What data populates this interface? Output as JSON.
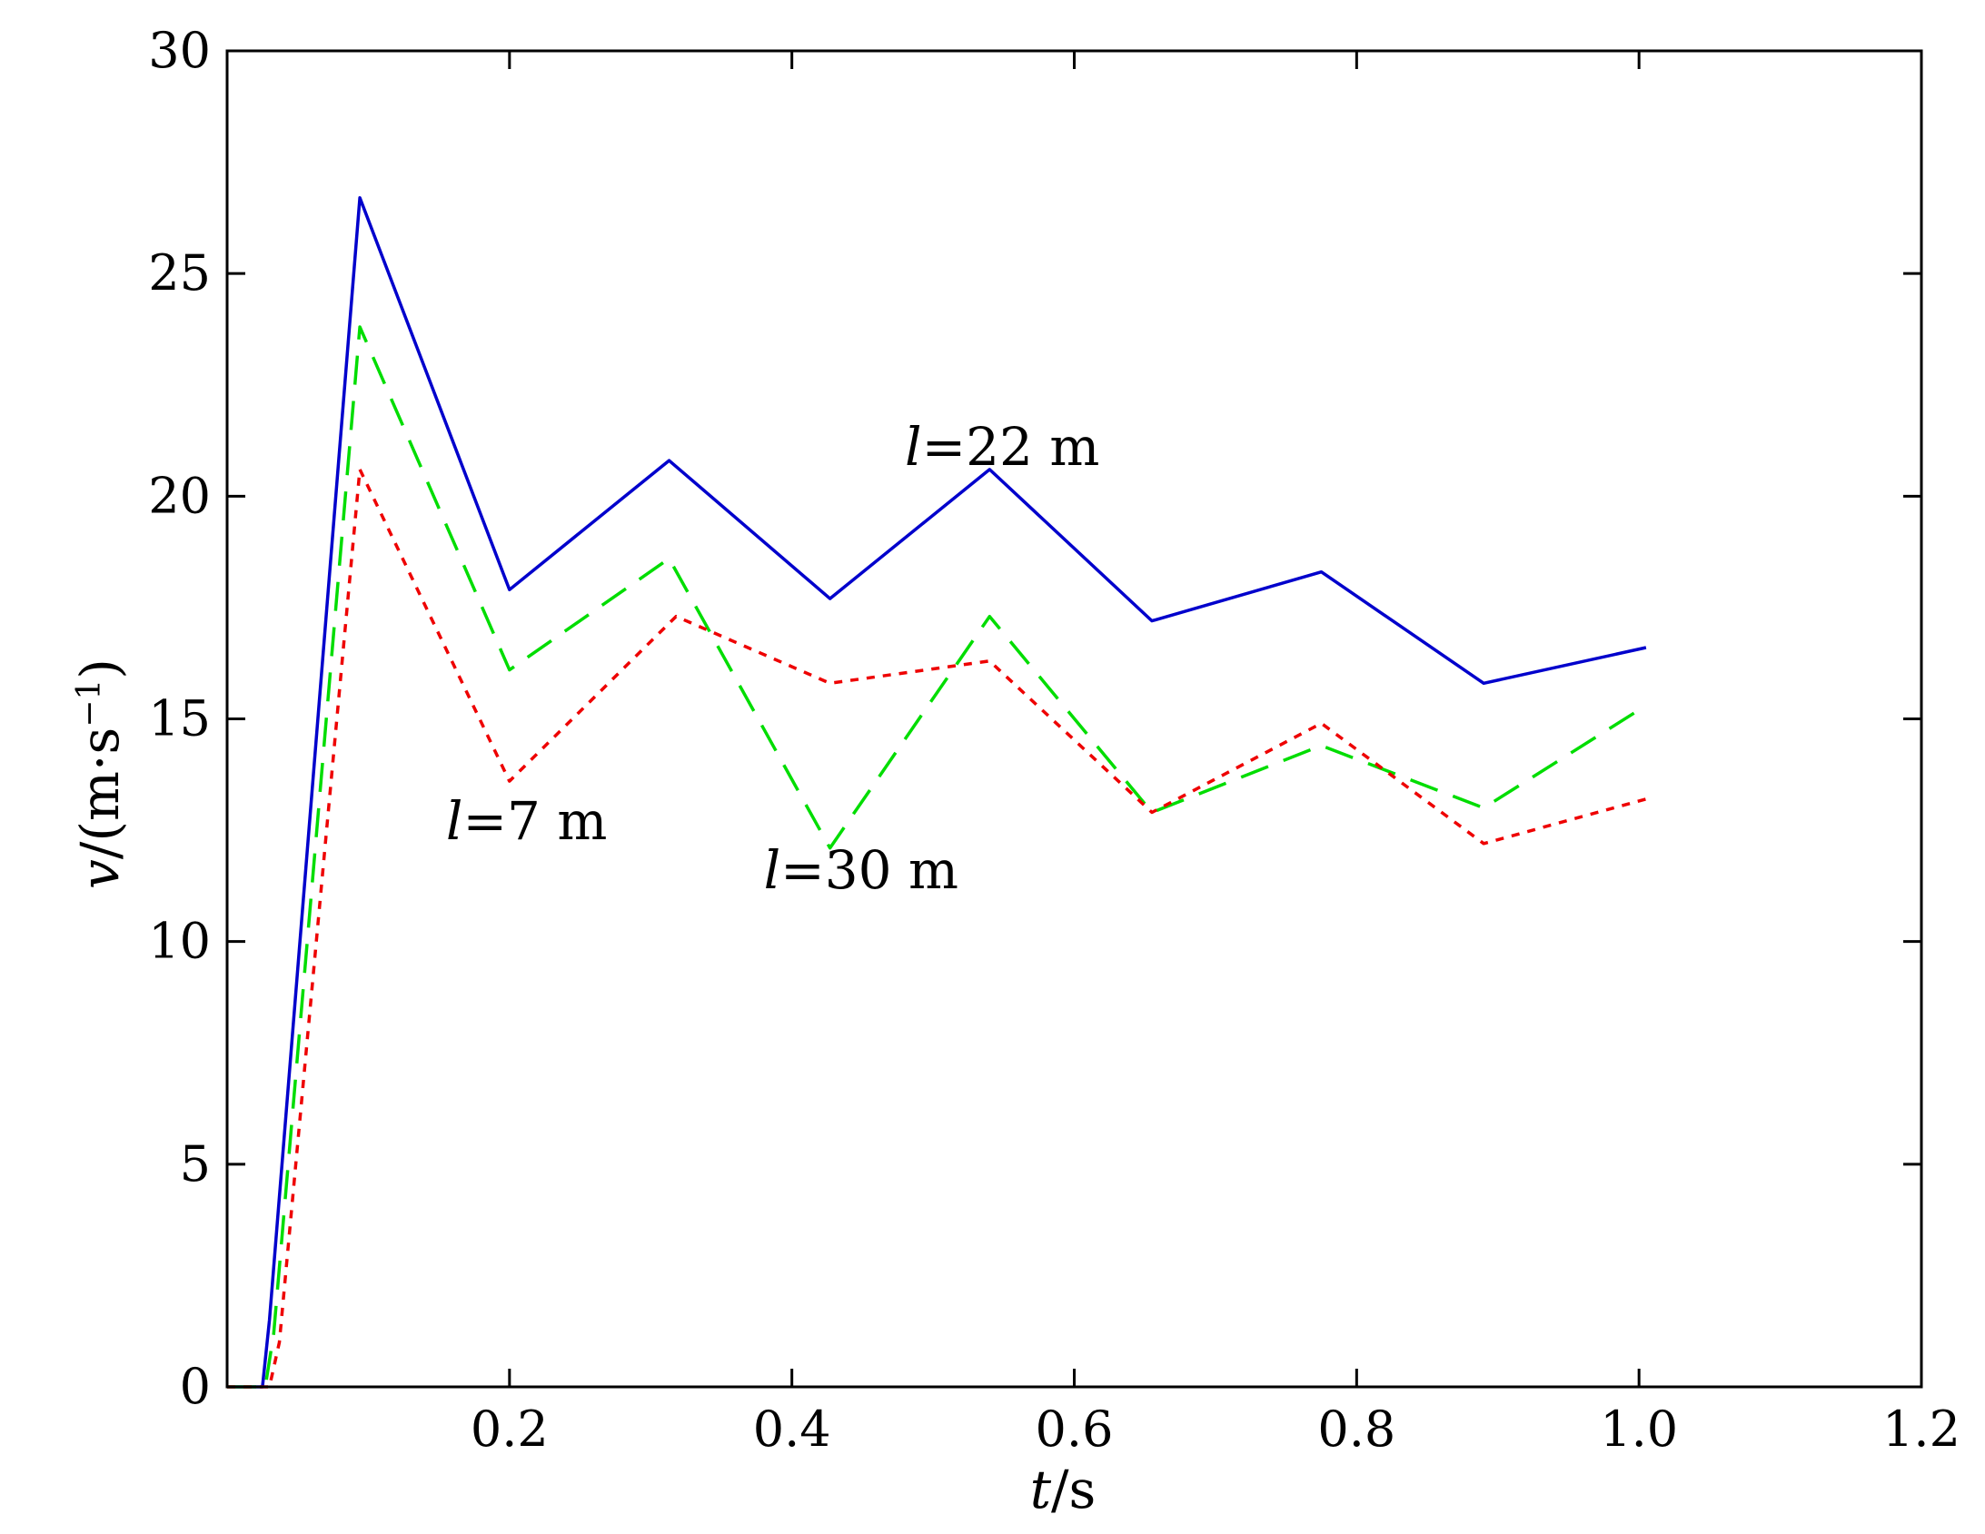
{
  "chart_data": {
    "type": "line",
    "xlabel_var": "t",
    "xlabel_unit": "/s",
    "ylabel_var": "v",
    "ylabel_unit_pre": "/(m·s",
    "ylabel_unit_exp": "−1",
    "ylabel_unit_post": ")",
    "xlim": [
      0,
      1.2
    ],
    "ylim": [
      0,
      30
    ],
    "x_ticks": [
      0.2,
      0.4,
      0.6,
      0.8,
      1.0,
      1.2
    ],
    "x_tick_labels": [
      "0.2",
      "0.4",
      "0.6",
      "0.8",
      "1.0",
      "1.2"
    ],
    "y_ticks": [
      0,
      5,
      10,
      15,
      20,
      25,
      30
    ],
    "y_tick_labels": [
      "0",
      "5",
      "10",
      "15",
      "20",
      "25",
      "30"
    ],
    "grid": false,
    "series": [
      {
        "color": "#0000cc",
        "style": "solid",
        "points": [
          [
            0.0,
            0.0
          ],
          [
            0.025,
            0.0
          ],
          [
            0.03,
            1.5
          ],
          [
            0.094,
            26.7
          ],
          [
            0.2,
            17.9
          ],
          [
            0.313,
            20.8
          ],
          [
            0.427,
            17.7
          ],
          [
            0.54,
            20.6
          ],
          [
            0.655,
            17.2
          ],
          [
            0.775,
            18.3
          ],
          [
            0.89,
            15.8
          ],
          [
            1.005,
            16.6
          ]
        ]
      },
      {
        "color": "#00dd00",
        "style": "dashed",
        "points": [
          [
            0.0,
            0.0
          ],
          [
            0.027,
            0.0
          ],
          [
            0.033,
            1.2
          ],
          [
            0.094,
            23.8
          ],
          [
            0.2,
            16.1
          ],
          [
            0.313,
            18.6
          ],
          [
            0.427,
            12.1
          ],
          [
            0.54,
            17.3
          ],
          [
            0.655,
            12.9
          ],
          [
            0.775,
            14.4
          ],
          [
            0.89,
            13.0
          ],
          [
            1.005,
            15.3
          ]
        ]
      },
      {
        "color": "#ee0000",
        "style": "dotted",
        "points": [
          [
            0.0,
            0.0
          ],
          [
            0.03,
            0.0
          ],
          [
            0.037,
            1.0
          ],
          [
            0.094,
            20.6
          ],
          [
            0.2,
            13.6
          ],
          [
            0.318,
            17.3
          ],
          [
            0.427,
            15.8
          ],
          [
            0.54,
            16.3
          ],
          [
            0.655,
            12.9
          ],
          [
            0.775,
            14.9
          ],
          [
            0.89,
            12.2
          ],
          [
            1.005,
            13.2
          ]
        ]
      }
    ],
    "annotations": [
      {
        "var": "l",
        "text": "=22 m",
        "x": 0.48,
        "y": 20.7
      },
      {
        "var": "l",
        "text": "=7 m",
        "x": 0.155,
        "y": 12.3
      },
      {
        "var": "l",
        "text": "=30 m",
        "x": 0.38,
        "y": 11.2
      }
    ]
  }
}
